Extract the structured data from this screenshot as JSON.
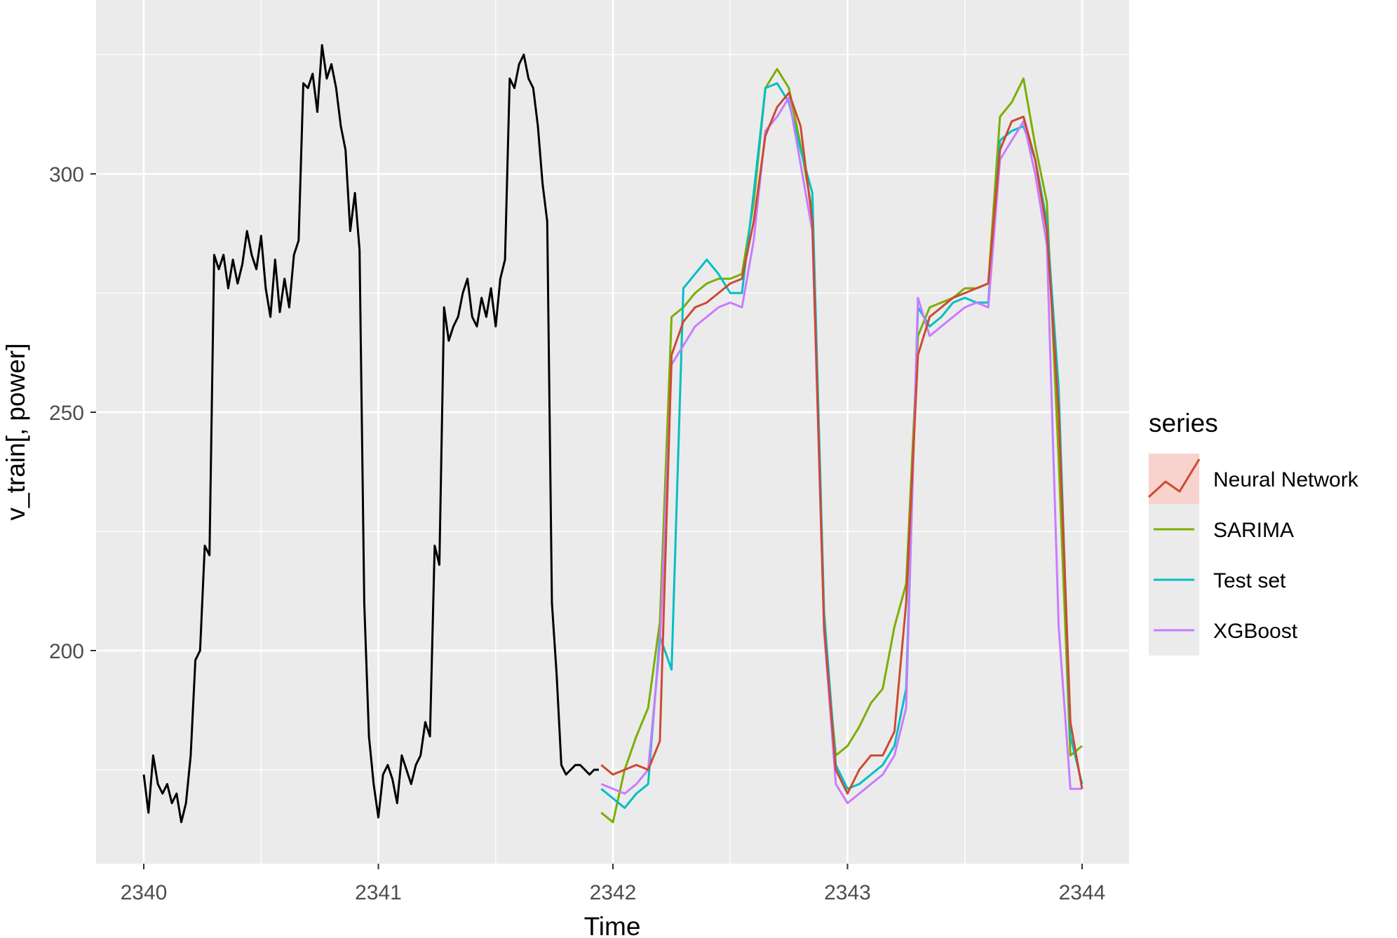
{
  "chart_data": {
    "type": "line",
    "title": "",
    "xlabel": "Time",
    "ylabel": "v_train[, power]",
    "xlim": [
      2339.8,
      2344.2
    ],
    "ylim": [
      163,
      336
    ],
    "x_ticks": [
      2340,
      2341,
      2342,
      2343,
      2344
    ],
    "y_ticks": [
      200,
      250,
      300
    ],
    "grid": true,
    "legend": {
      "title": "series",
      "position": "right",
      "entries": [
        "Neural Network",
        "SARIMA",
        "Test set",
        "XGBoost"
      ]
    },
    "colors": {
      "train": "#000000",
      "Neural Network": "#cc4a33",
      "SARIMA": "#7cae00",
      "Test set": "#00bfc4",
      "XGBoost": "#c77cff"
    },
    "train": {
      "x": [
        2340.0,
        2340.02,
        2340.04,
        2340.06,
        2340.08,
        2340.1,
        2340.12,
        2340.14,
        2340.16,
        2340.18,
        2340.2,
        2340.22,
        2340.24,
        2340.26,
        2340.28,
        2340.3,
        2340.32,
        2340.34,
        2340.36,
        2340.38,
        2340.4,
        2340.42,
        2340.44,
        2340.46,
        2340.48,
        2340.5,
        2340.52,
        2340.54,
        2340.56,
        2340.58,
        2340.6,
        2340.62,
        2340.64,
        2340.66,
        2340.68,
        2340.7,
        2340.72,
        2340.74,
        2340.76,
        2340.78,
        2340.8,
        2340.82,
        2340.84,
        2340.86,
        2340.88,
        2340.9,
        2340.92,
        2340.94,
        2340.96,
        2340.98,
        2341.0,
        2341.02,
        2341.04,
        2341.06,
        2341.08,
        2341.1,
        2341.12,
        2341.14,
        2341.16,
        2341.18,
        2341.2,
        2341.22,
        2341.24,
        2341.26,
        2341.28,
        2341.3,
        2341.32,
        2341.34,
        2341.36,
        2341.38,
        2341.4,
        2341.42,
        2341.44,
        2341.46,
        2341.48,
        2341.5,
        2341.52,
        2341.54,
        2341.56,
        2341.58,
        2341.6,
        2341.62,
        2341.64,
        2341.66,
        2341.68,
        2341.7,
        2341.72,
        2341.74,
        2341.76,
        2341.78,
        2341.8,
        2341.82,
        2341.84,
        2341.86,
        2341.88,
        2341.9,
        2341.92,
        2341.94
      ],
      "y": [
        174,
        166,
        178,
        172,
        170,
        172,
        168,
        170,
        164,
        168,
        178,
        198,
        200,
        222,
        220,
        283,
        280,
        283,
        276,
        282,
        277,
        281,
        288,
        283,
        280,
        287,
        276,
        270,
        282,
        271,
        278,
        272,
        283,
        286,
        319,
        318,
        321,
        313,
        327,
        320,
        323,
        318,
        310,
        305,
        288,
        296,
        284,
        210,
        182,
        172,
        165,
        174,
        176,
        173,
        168,
        178,
        175,
        172,
        176,
        178,
        185,
        182,
        222,
        218,
        272,
        265,
        268,
        270,
        275,
        278,
        270,
        268,
        274,
        270,
        276,
        268,
        278,
        282,
        320,
        318,
        323,
        325,
        320,
        318,
        310,
        298,
        290,
        210,
        195,
        176,
        174,
        175,
        176,
        176,
        175,
        174,
        175,
        175
      ]
    },
    "x": [
      2341.95,
      2342.0,
      2342.05,
      2342.1,
      2342.15,
      2342.2,
      2342.25,
      2342.3,
      2342.35,
      2342.4,
      2342.45,
      2342.5,
      2342.55,
      2342.6,
      2342.65,
      2342.7,
      2342.75,
      2342.8,
      2342.85,
      2342.9,
      2342.95,
      2343.0,
      2343.05,
      2343.1,
      2343.15,
      2343.2,
      2343.25,
      2343.3,
      2343.35,
      2343.4,
      2343.45,
      2343.5,
      2343.55,
      2343.6,
      2343.65,
      2343.7,
      2343.75,
      2343.8,
      2343.85,
      2343.9,
      2343.95,
      2344.0
    ],
    "series": [
      {
        "name": "Neural Network",
        "values": [
          176,
          174,
          175,
          176,
          175,
          181,
          262,
          269,
          272,
          273,
          275,
          277,
          278,
          290,
          308,
          314,
          317,
          310,
          290,
          205,
          175,
          170,
          175,
          178,
          178,
          183,
          210,
          262,
          270,
          272,
          274,
          275,
          276,
          277,
          305,
          311,
          312,
          303,
          288,
          250,
          185,
          171
        ]
      },
      {
        "name": "SARIMA",
        "values": [
          166,
          164,
          175,
          182,
          188,
          206,
          270,
          272,
          275,
          277,
          278,
          278,
          279,
          294,
          318,
          322,
          318,
          306,
          292,
          204,
          178,
          180,
          184,
          189,
          192,
          205,
          214,
          266,
          272,
          273,
          274,
          276,
          276,
          277,
          312,
          315,
          320,
          306,
          294,
          240,
          178,
          180
        ]
      },
      {
        "name": "Test set",
        "values": [
          171,
          169,
          167,
          170,
          172,
          203,
          196,
          276,
          279,
          282,
          279,
          275,
          275,
          296,
          318,
          319,
          315,
          305,
          296,
          208,
          176,
          171,
          172,
          174,
          176,
          180,
          192,
          272,
          268,
          270,
          273,
          274,
          273,
          273,
          307,
          309,
          310,
          303,
          290,
          255,
          182,
          172
        ]
      },
      {
        "name": "XGBoost",
        "values": [
          172,
          171,
          170,
          172,
          175,
          201,
          260,
          264,
          268,
          270,
          272,
          273,
          272,
          286,
          309,
          312,
          316,
          302,
          288,
          204,
          172,
          168,
          170,
          172,
          174,
          178,
          188,
          274,
          266,
          268,
          270,
          272,
          273,
          272,
          303,
          307,
          311,
          300,
          285,
          205,
          171,
          171
        ]
      }
    ]
  }
}
